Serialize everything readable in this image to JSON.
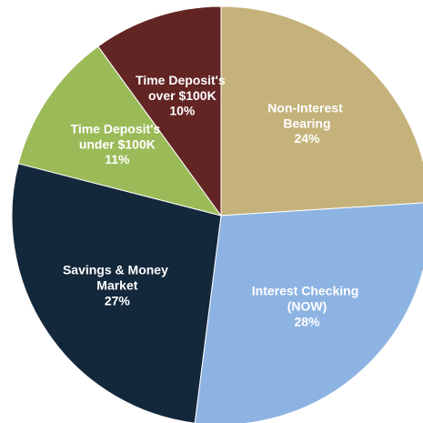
{
  "chart_data": {
    "type": "pie",
    "categories": [
      "Non-Interest Bearing",
      "Interest Checking (NOW)",
      "Savings & Money Market",
      "Time Deposit's under $100K",
      "Time Deposit's over $100K"
    ],
    "values": [
      24,
      28,
      27,
      11,
      10
    ],
    "value_labels": [
      "24%",
      "28%",
      "27%",
      "11%",
      "10%"
    ],
    "colors": [
      "#c4b27a",
      "#8db3e2",
      "#14283b",
      "#9bbb59",
      "#632523"
    ]
  }
}
